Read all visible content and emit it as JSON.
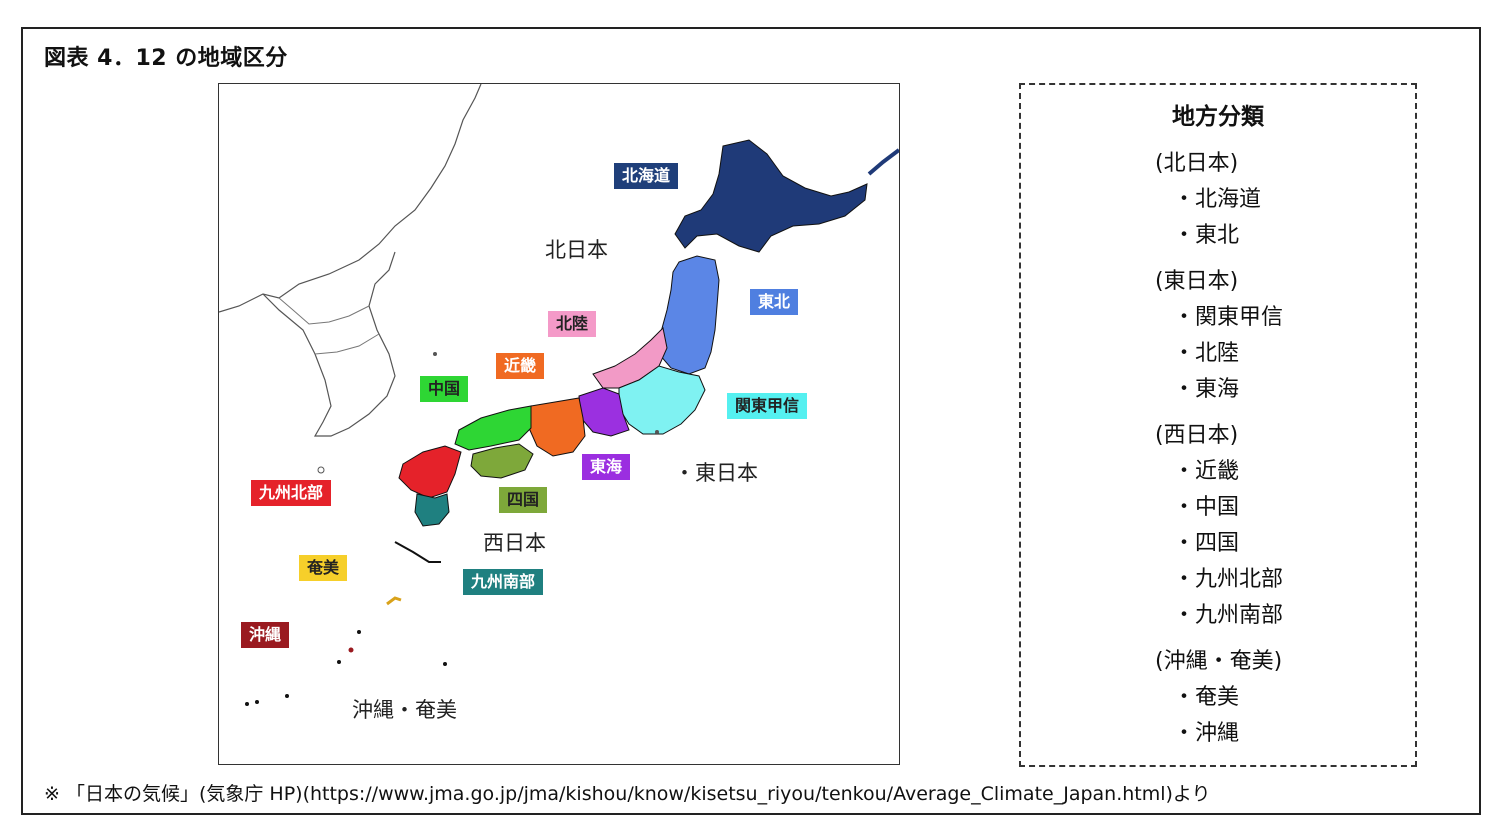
{
  "figure_title": "図表 4．12 の地域区分",
  "map": {
    "region_tags": {
      "hokkaido": {
        "label": "北海道",
        "bg": "#1f3f7a",
        "fg": "#ffffff"
      },
      "tohoku": {
        "label": "東北",
        "bg": "#4f7fe0",
        "fg": "#ffffff"
      },
      "hokuriku": {
        "label": "北陸",
        "bg": "#f49ac8",
        "fg": "#222222"
      },
      "kinki": {
        "label": "近畿",
        "bg": "#f06a22",
        "fg": "#ffffff"
      },
      "chugoku": {
        "label": "中国",
        "bg": "#2ed634",
        "fg": "#222222"
      },
      "kanto_koshin": {
        "label": "関東甲信",
        "bg": "#55f0f0",
        "fg": "#222222"
      },
      "tokai": {
        "label": "東海",
        "bg": "#9b2ee0",
        "fg": "#ffffff"
      },
      "shikoku": {
        "label": "四国",
        "bg": "#7ea83a",
        "fg": "#222222"
      },
      "kyushu_north": {
        "label": "九州北部",
        "bg": "#e5222a",
        "fg": "#ffffff"
      },
      "kyushu_south": {
        "label": "九州南部",
        "bg": "#1f8080",
        "fg": "#ffffff"
      },
      "amami": {
        "label": "奄美",
        "bg": "#f6cf2a",
        "fg": "#222222"
      },
      "okinawa": {
        "label": "沖縄",
        "bg": "#9a1a20",
        "fg": "#ffffff"
      }
    },
    "zone_labels": {
      "north_japan": "北日本",
      "east_japan": "・東日本",
      "west_japan": "西日本",
      "okinawa_amami": "沖縄・奄美"
    }
  },
  "legend": {
    "title": "地方分類",
    "groups": [
      {
        "heading": "(北日本)",
        "items": [
          "・北海道",
          "・東北"
        ]
      },
      {
        "heading": "(東日本)",
        "items": [
          "・関東甲信",
          "・北陸",
          "・東海"
        ]
      },
      {
        "heading": "(西日本)",
        "items": [
          "・近畿",
          "・中国",
          "・四国",
          "・九州北部",
          "・九州南部"
        ]
      },
      {
        "heading": "(沖縄・奄美)",
        "items": [
          "・奄美",
          "・沖縄"
        ]
      }
    ]
  },
  "footnote": "※ 「日本の気候」(気象庁 HP)(https://www.jma.go.jp/jma/kishou/know/kisetsu_riyou/tenkou/Average_Climate_Japan.html)より"
}
